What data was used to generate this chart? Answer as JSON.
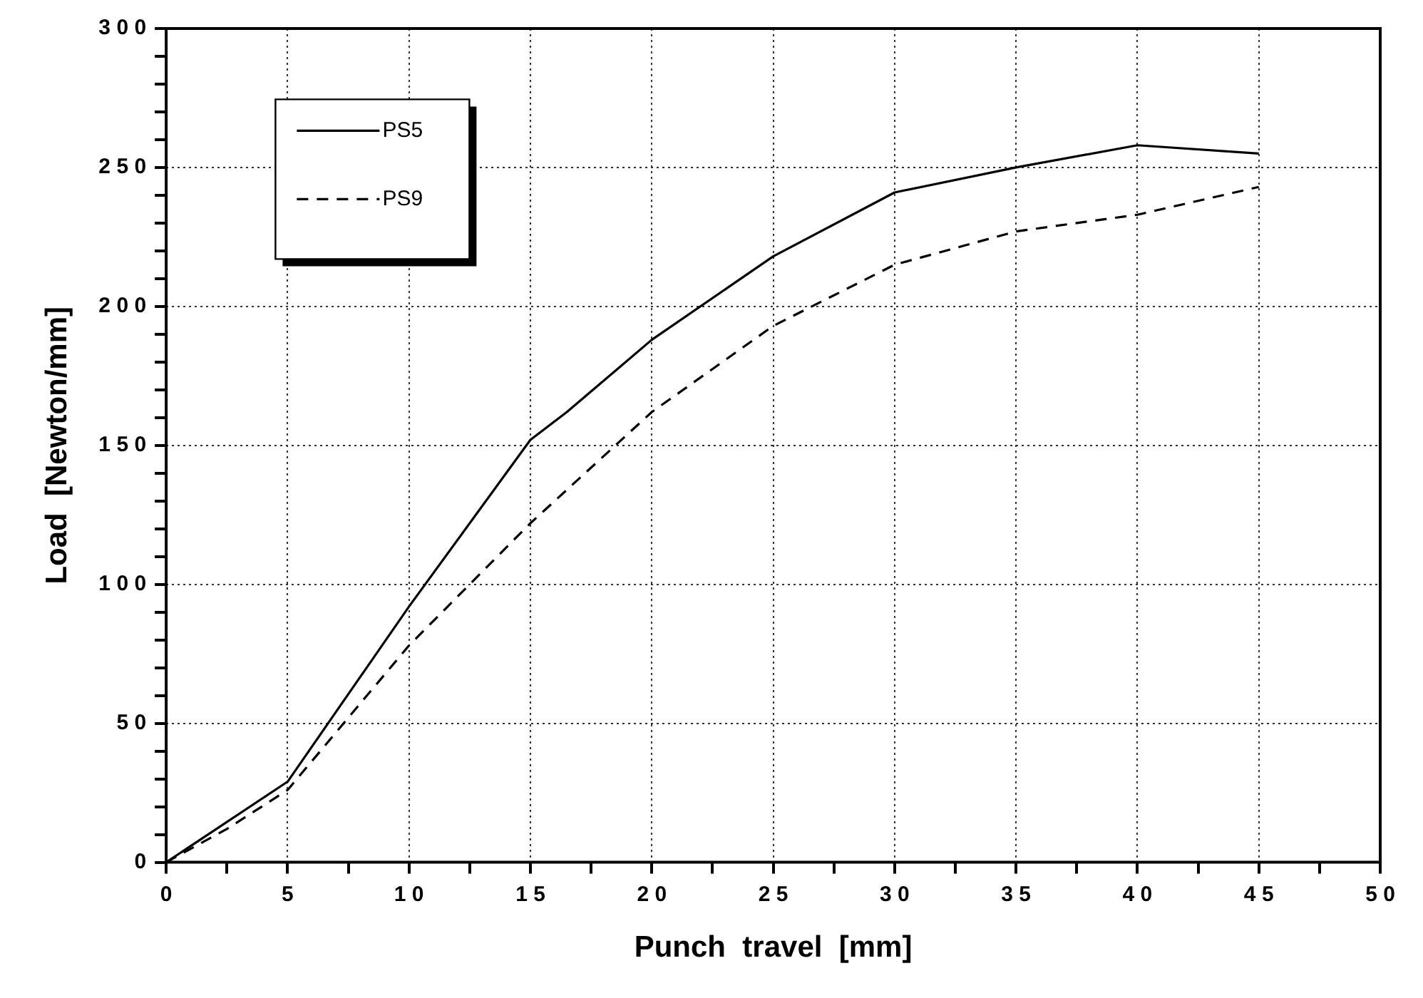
{
  "chart_data": {
    "type": "line",
    "xlabel": "Punch  travel  [mm]",
    "ylabel": "Load  [Newton/mm]",
    "xlim": [
      0,
      50
    ],
    "ylim": [
      0,
      300
    ],
    "xticks": [
      0,
      {
        "value": 2.5,
        "label": null
      },
      5,
      {
        "value": 7.5,
        "label": null
      },
      10,
      {
        "value": 12.5,
        "label": null
      },
      15,
      {
        "value": 17.5,
        "label": null
      },
      20,
      {
        "value": 22.5,
        "label": null
      },
      25,
      {
        "value": 27.5,
        "label": null
      },
      30,
      {
        "value": 32.5,
        "label": null
      },
      35,
      {
        "value": 37.5,
        "label": null
      },
      40,
      {
        "value": 42.5,
        "label": null
      },
      45,
      {
        "value": 47.5,
        "label": null
      },
      50
    ],
    "yticks": [
      0,
      {
        "value": 10,
        "label": null
      },
      {
        "value": 20,
        "label": null
      },
      {
        "value": 30,
        "label": null
      },
      {
        "value": 40,
        "label": null
      },
      50,
      {
        "value": 60,
        "label": null
      },
      {
        "value": 70,
        "label": null
      },
      {
        "value": 80,
        "label": null
      },
      {
        "value": 90,
        "label": null
      },
      100,
      {
        "value": 110,
        "label": null
      },
      {
        "value": 120,
        "label": null
      },
      {
        "value": 130,
        "label": null
      },
      {
        "value": 140,
        "label": null
      },
      150,
      {
        "value": 160,
        "label": null
      },
      {
        "value": 170,
        "label": null
      },
      {
        "value": 180,
        "label": null
      },
      {
        "value": 190,
        "label": null
      },
      200,
      {
        "value": 210,
        "label": null
      },
      {
        "value": 220,
        "label": null
      },
      {
        "value": 230,
        "label": null
      },
      {
        "value": 240,
        "label": null
      },
      250,
      {
        "value": 260,
        "label": null
      },
      {
        "value": 270,
        "label": null
      },
      {
        "value": 280,
        "label": null
      },
      {
        "value": 290,
        "label": null
      },
      300
    ],
    "grid": true,
    "legend": "top left",
    "marker": "none",
    "series": [
      {
        "name": "PS5",
        "color": "#000000",
        "line_style": "solid",
        "x": [
          0,
          5,
          10,
          15,
          16.5,
          20,
          25,
          30,
          35,
          40,
          45
        ],
        "values": [
          0,
          29,
          92,
          152,
          162,
          188,
          218,
          241,
          250,
          258,
          255
        ]
      },
      {
        "name": "PS9",
        "color": "#000000",
        "line_style": "dashed",
        "x": [
          0,
          2.5,
          5,
          10,
          15,
          20,
          25,
          30,
          35,
          40,
          45
        ],
        "values": [
          0,
          12,
          26,
          78,
          122,
          162,
          193,
          215,
          227,
          233,
          243
        ]
      }
    ]
  }
}
